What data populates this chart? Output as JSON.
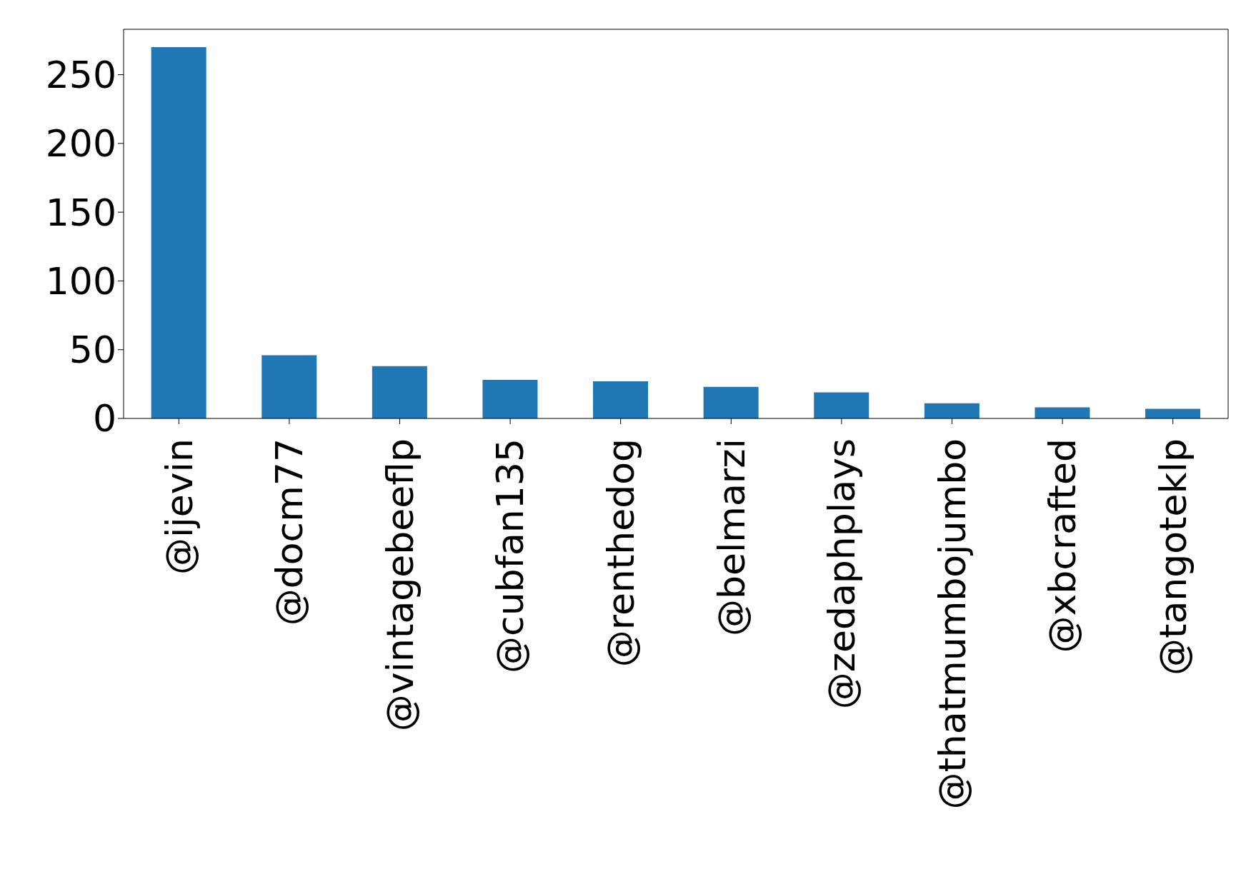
{
  "chart_data": {
    "type": "bar",
    "categories": [
      "@ijevin",
      "@docm77",
      "@vintagebeeflp",
      "@cubfan135",
      "@renthedog",
      "@belmarzi",
      "@zedaphplays",
      "@thatmumbojumbo",
      "@xbcrafted",
      "@tangoteklp"
    ],
    "values": [
      270,
      46,
      38,
      28,
      27,
      23,
      19,
      11,
      8,
      7
    ],
    "color": "#1f77b4",
    "ylim": [
      0,
      283
    ],
    "yticks": [
      0,
      50,
      100,
      150,
      200,
      250
    ],
    "grid": false,
    "legend": false
  }
}
